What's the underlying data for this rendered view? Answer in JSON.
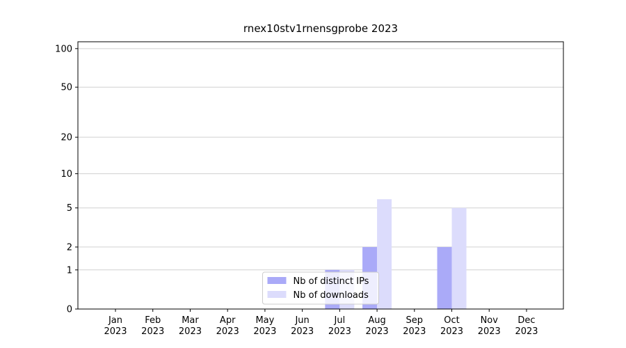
{
  "chart_data": {
    "type": "bar",
    "title": "rnex10stv1rnensgprobe 2023",
    "categories": [
      "Jan\n2023",
      "Feb\n2023",
      "Mar\n2023",
      "Apr\n2023",
      "May\n2023",
      "Jun\n2023",
      "Jul\n2023",
      "Aug\n2023",
      "Sep\n2023",
      "Oct\n2023",
      "Nov\n2023",
      "Dec\n2023"
    ],
    "series": [
      {
        "name": "Nb of distinct IPs",
        "color": "#aaaaf8",
        "values": [
          0,
          0,
          0,
          0,
          0,
          0,
          1,
          2,
          0,
          2,
          0,
          0
        ]
      },
      {
        "name": "Nb of downloads",
        "color": "#dcdcfc",
        "values": [
          0,
          0,
          0,
          0,
          0,
          0,
          1,
          6,
          0,
          5,
          0,
          0
        ]
      }
    ],
    "yscale": "log1p",
    "ylim": [
      0,
      113
    ],
    "yticks": [
      0,
      1,
      2,
      5,
      10,
      20,
      50,
      100
    ],
    "grid": true,
    "legend": "lower center"
  }
}
